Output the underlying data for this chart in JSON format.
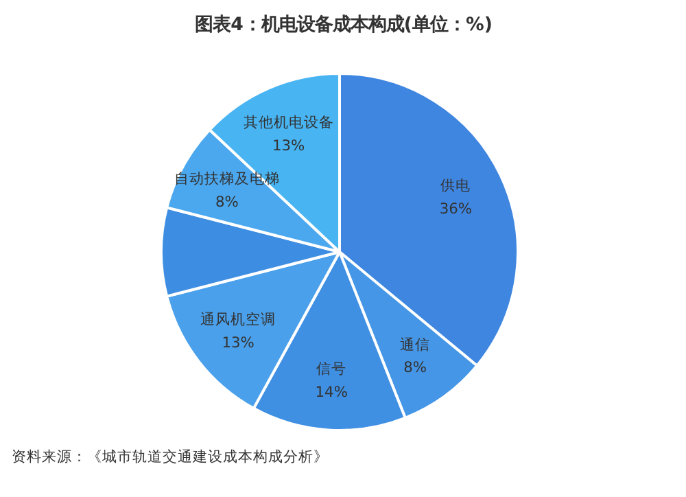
{
  "chart_data": {
    "type": "pie",
    "title": "图表4：机电设备成本构成(单位：%)",
    "categories": [
      "供电",
      "通信",
      "信号",
      "通风机空调",
      null,
      "自动扶梯及电梯",
      "其他机电设备"
    ],
    "values": [
      36,
      8,
      14,
      13,
      8,
      8,
      13
    ],
    "colors": [
      "#3f86e0",
      "#4596e6",
      "#3f8fe3",
      "#4aa0ea",
      "#3d8ee2",
      "#4ba8ee",
      "#48b4f2"
    ],
    "value_labels": [
      "36%",
      "8%",
      "14%",
      "13%",
      null,
      "8%",
      "13%"
    ],
    "annotations": [
      "资料来源：《城市轨道交通建设成本构成分析》"
    ]
  }
}
